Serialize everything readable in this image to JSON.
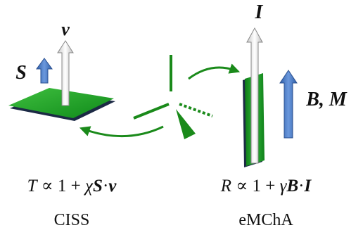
{
  "left": {
    "velocity_label": "v",
    "spin_label": "S",
    "equation": [
      "T",
      " ∝ 1 + ",
      "χ",
      "S",
      "·",
      "v"
    ],
    "name": "CISS"
  },
  "right": {
    "current_label": "I",
    "field_label": "B, M",
    "equation": [
      "R",
      " ∝ 1 + ",
      "γ",
      "B",
      "·",
      "I"
    ],
    "name": "eMChA"
  }
}
